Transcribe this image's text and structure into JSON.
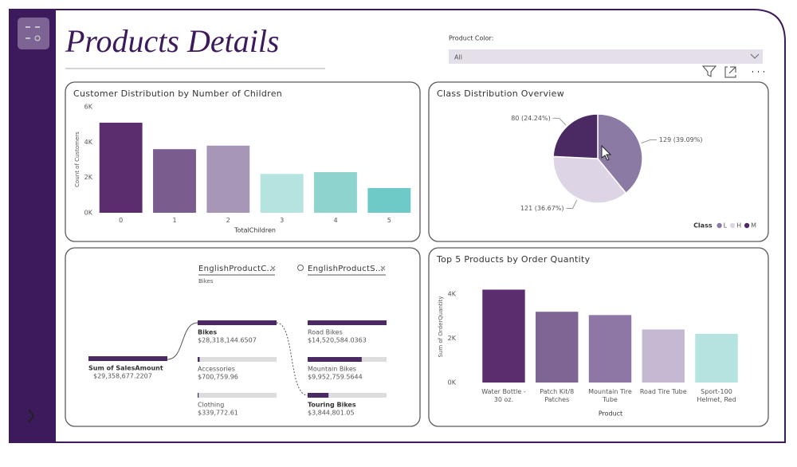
{
  "header": {
    "title": "Products Details"
  },
  "slicer": {
    "label": "Product Color:",
    "value": "All"
  },
  "chart_data": [
    {
      "type": "bar",
      "title": "Customer Distribution by Number of Children",
      "x_label": "TotalChildren",
      "y_label": "Count of Customers",
      "categories": [
        "0",
        "1",
        "2",
        "3",
        "4",
        "5"
      ],
      "values": [
        5100,
        3600,
        3800,
        2200,
        2300,
        1400
      ],
      "colors": [
        "#5b2d6e",
        "#7a5c8f",
        "#a896b6",
        "#b5e3df",
        "#8fd3cf",
        "#6ecac6"
      ],
      "ylim": [
        0,
        6000
      ],
      "yticks": [
        {
          "value": 0,
          "label": "0K"
        },
        {
          "value": 2000,
          "label": "2K"
        },
        {
          "value": 4000,
          "label": "4K"
        },
        {
          "value": 6000,
          "label": "6K"
        }
      ]
    },
    {
      "type": "pie",
      "title": "Class Distribution Overview",
      "categories": [
        "L",
        "H",
        "M"
      ],
      "values": [
        129,
        121,
        80
      ],
      "value_labels": [
        "129 (39.09%)",
        "121 (36.67%)",
        "80 (24.24%)"
      ],
      "colors": [
        "#8b7aa3",
        "#ddd5e6",
        "#4b2a63"
      ],
      "legend_title": "Class",
      "legend": "bottom-right"
    },
    {
      "type": "bar",
      "title": "Top 5 Products by Order Quantity",
      "x_label": "Product",
      "y_label": "Sum of OrderQuantity",
      "categories": [
        "Water Bottle - 30 oz.",
        "Patch Kit/8 Patches",
        "Mountain Tire Tube",
        "Road Tire Tube",
        "Sport-100 Helmet, Red"
      ],
      "values": [
        4200,
        3200,
        3050,
        2400,
        2200
      ],
      "colors": [
        "#5b2d6e",
        "#7e6594",
        "#8e77a4",
        "#c4b8d2",
        "#b5e3df"
      ],
      "ylim": [
        0,
        4000
      ],
      "yticks": [
        {
          "value": 0,
          "label": "0K"
        },
        {
          "value": 2000,
          "label": "2K"
        },
        {
          "value": 4000,
          "label": "4K"
        }
      ]
    }
  ],
  "decomposition_tree": {
    "levels": [
      {
        "header": "EnglishProductC...",
        "selected": "Bikes"
      },
      {
        "header": "EnglishProductS..."
      }
    ],
    "root": {
      "name": "Sum of SalesAmount",
      "value": 29358677.2207,
      "label": "$29,358,677.2207"
    },
    "nodes": [
      [
        {
          "name": "Bikes",
          "value": 28318144.6507,
          "label": "$28,318,144.6507"
        },
        {
          "name": "Accessories",
          "value": 700759.96,
          "label": "$700,759.96"
        },
        {
          "name": "Clothing",
          "value": 339772.61,
          "label": "$339,772.61"
        }
      ],
      [
        {
          "name": "Road Bikes",
          "value": 14520584.0363,
          "label": "$14,520,584.0363"
        },
        {
          "name": "Mountain Bikes",
          "value": 9952759.5644,
          "label": "$9,952,759.5644"
        },
        {
          "name": "Touring Bikes",
          "value": 3844801.05,
          "label": "$3,844,801.05"
        }
      ]
    ]
  }
}
